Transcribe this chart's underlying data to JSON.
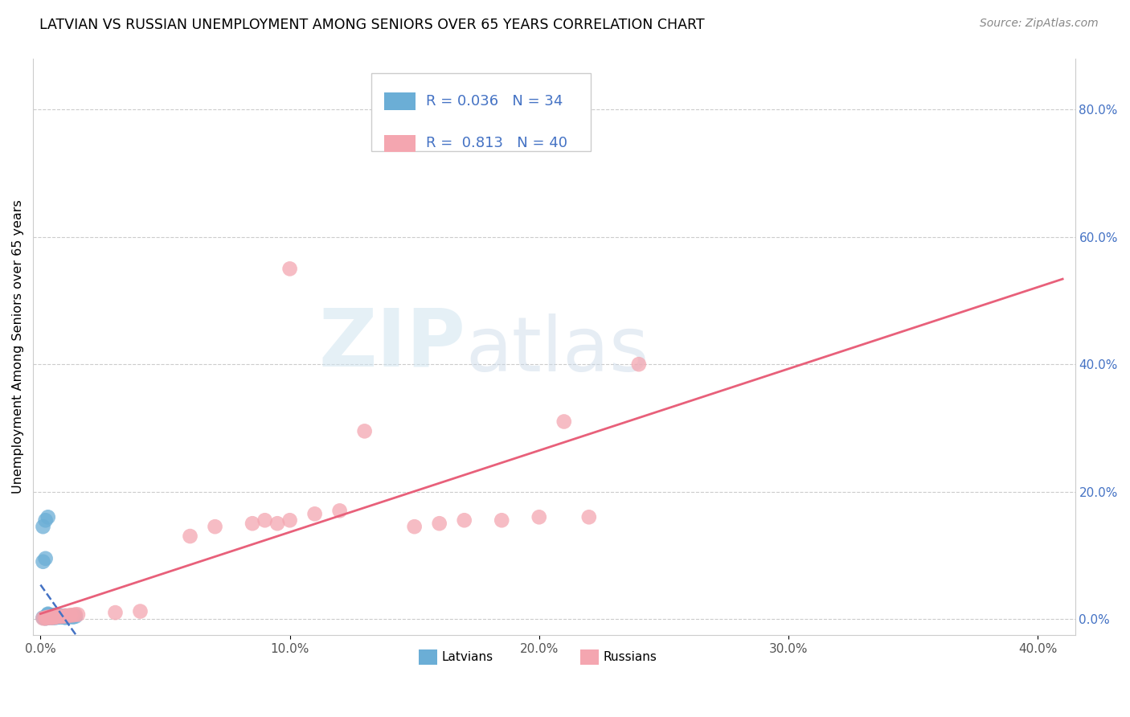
{
  "title": "LATVIAN VS RUSSIAN UNEMPLOYMENT AMONG SENIORS OVER 65 YEARS CORRELATION CHART",
  "source": "Source: ZipAtlas.com",
  "ylabel": "Unemployment Among Seniors over 65 years",
  "watermark_zip": "ZIP",
  "watermark_atlas": "atlas",
  "latvian_color": "#6baed6",
  "russian_color": "#f4a6b0",
  "trend_latvian_color": "#4472C4",
  "trend_russian_color": "#e8607a",
  "latvian_R": "0.036",
  "latvian_N": "34",
  "russian_R": "0.813",
  "russian_N": "40",
  "legend_text_color": "#4472C4",
  "legend_label_color": "#333333",
  "latvian_x": [
    0.001,
    0.002,
    0.002,
    0.003,
    0.003,
    0.004,
    0.004,
    0.004,
    0.005,
    0.005,
    0.005,
    0.006,
    0.006,
    0.007,
    0.007,
    0.008,
    0.008,
    0.009,
    0.009,
    0.01,
    0.01,
    0.011,
    0.012,
    0.013,
    0.014,
    0.001,
    0.002,
    0.003,
    0.001,
    0.002,
    0.003,
    0.003,
    0.005,
    0.006
  ],
  "latvian_y": [
    0.002,
    0.002,
    0.001,
    0.003,
    0.002,
    0.002,
    0.003,
    0.004,
    0.002,
    0.003,
    0.004,
    0.002,
    0.005,
    0.003,
    0.004,
    0.003,
    0.005,
    0.003,
    0.004,
    0.002,
    0.005,
    0.003,
    0.004,
    0.003,
    0.004,
    0.145,
    0.155,
    0.16,
    0.09,
    0.095,
    0.008,
    0.007,
    0.006,
    0.006
  ],
  "russian_x": [
    0.001,
    0.002,
    0.002,
    0.003,
    0.003,
    0.004,
    0.004,
    0.005,
    0.005,
    0.006,
    0.006,
    0.007,
    0.008,
    0.009,
    0.01,
    0.011,
    0.012,
    0.013,
    0.014,
    0.015,
    0.03,
    0.04,
    0.06,
    0.07,
    0.085,
    0.09,
    0.095,
    0.1,
    0.1,
    0.11,
    0.12,
    0.13,
    0.15,
    0.16,
    0.17,
    0.185,
    0.2,
    0.21,
    0.22,
    0.24
  ],
  "russian_y": [
    0.001,
    0.002,
    0.001,
    0.002,
    0.003,
    0.002,
    0.003,
    0.002,
    0.003,
    0.003,
    0.003,
    0.004,
    0.004,
    0.004,
    0.005,
    0.005,
    0.006,
    0.006,
    0.007,
    0.007,
    0.01,
    0.012,
    0.13,
    0.145,
    0.15,
    0.155,
    0.15,
    0.55,
    0.155,
    0.165,
    0.17,
    0.295,
    0.145,
    0.15,
    0.155,
    0.155,
    0.16,
    0.31,
    0.16,
    0.4
  ],
  "xlim_min": -0.003,
  "xlim_max": 0.415,
  "ylim_min": -0.025,
  "ylim_max": 0.88,
  "x_ticks": [
    0.0,
    0.1,
    0.2,
    0.3,
    0.4
  ],
  "x_tick_labels": [
    "0.0%",
    "10.0%",
    "20.0%",
    "30.0%",
    "40.0%"
  ],
  "y_ticks": [
    0.0,
    0.2,
    0.4,
    0.6,
    0.8
  ],
  "y_tick_labels": [
    "0.0%",
    "20.0%",
    "40.0%",
    "60.0%",
    "80.0%"
  ]
}
